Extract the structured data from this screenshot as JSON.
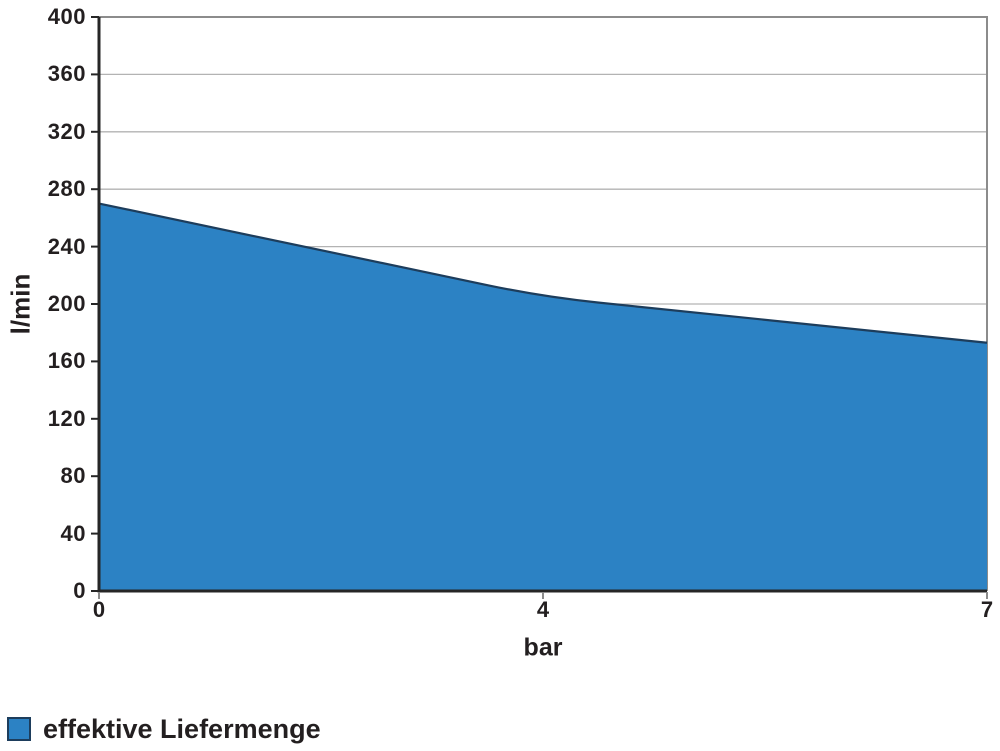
{
  "chart_data": {
    "type": "area",
    "title": "",
    "categories": [
      "0",
      "4",
      "7"
    ],
    "series": [
      {
        "name": "effektive Liefermenge",
        "values": [
          270,
          205,
          173
        ]
      }
    ],
    "xlabel": "bar",
    "ylabel": "l/min",
    "ylim": [
      0,
      400
    ],
    "yticks": [
      0,
      40,
      80,
      120,
      160,
      200,
      240,
      280,
      320,
      360,
      400
    ],
    "grid": "horizontal",
    "smooth": true,
    "legend_position": "bottom-left",
    "colors": {
      "fill": "#2c82c4",
      "line": "#1d3d5c",
      "grid": "#b3b3b3",
      "plot_border": "#8c8c8c",
      "axis": "#262626",
      "tick_x": "#8c8c8c",
      "text": "#231f20"
    }
  }
}
